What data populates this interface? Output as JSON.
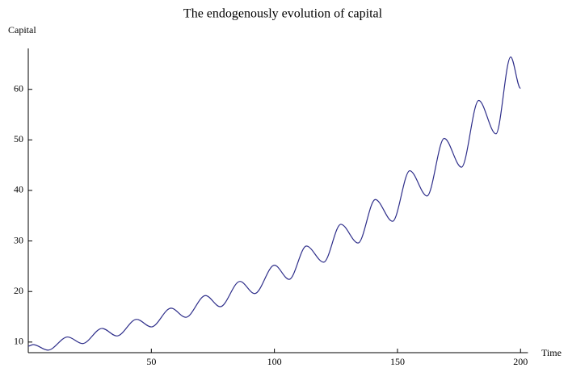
{
  "chart_data": {
    "type": "line",
    "title": "The endogenously evolution of capital",
    "x_label": "Time",
    "y_label": "Capital",
    "x": [
      0,
      2,
      8,
      16,
      22,
      30,
      36,
      44,
      50,
      58,
      64,
      72,
      78,
      86,
      92,
      100,
      106,
      113,
      120,
      127,
      134,
      141,
      148,
      155,
      162,
      169,
      176,
      183,
      190,
      196,
      200
    ],
    "series": [
      {
        "color": "#2e2e8a",
        "values": [
          9.2,
          9.5,
          8.4,
          11.0,
          9.7,
          12.7,
          11.2,
          14.5,
          13.0,
          16.7,
          14.9,
          19.2,
          17.0,
          22.0,
          19.6,
          25.2,
          22.4,
          29.0,
          25.8,
          33.3,
          29.6,
          38.2,
          33.9,
          43.9,
          38.9,
          50.3,
          44.6,
          57.8,
          51.2,
          66.4,
          60.2
        ]
      }
    ],
    "xlim": [
      0,
      203
    ],
    "ylim": [
      7.9,
      68.1
    ],
    "xticks": [
      50,
      100,
      150,
      200
    ],
    "yticks": [
      10,
      20,
      30,
      40,
      50,
      60
    ]
  }
}
